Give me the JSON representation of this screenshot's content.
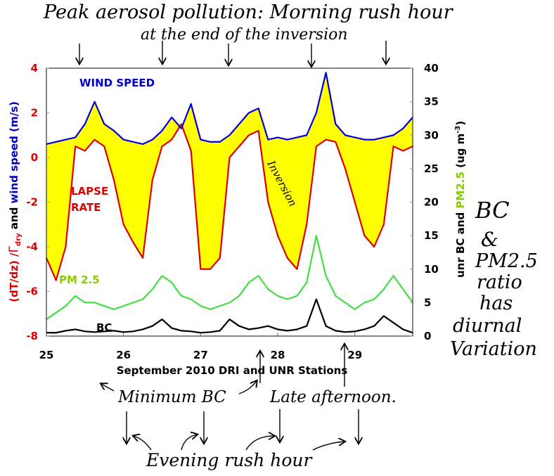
{
  "chart_data": {
    "type": "line",
    "xlabel": "September 2010 DRI and UNR Stations",
    "ylabel_left": {
      "part1": "(dT/dz) /",
      "gamma": "Γ",
      "sub": "dry",
      "part2": " and ",
      "part3": "wind speed (m/s)"
    },
    "ylabel_right": {
      "part1": "unr BC and ",
      "part2": "PM2.5",
      "part3": " (ug m",
      "sup": "-3",
      "part4": ")"
    },
    "xlim": [
      25,
      29.75
    ],
    "ylim_left": [
      -8,
      4
    ],
    "ylim_right": [
      0,
      40
    ],
    "x_ticks": [
      "25",
      "26",
      "27",
      "28",
      "29"
    ],
    "y_ticks_left": [
      "4",
      "2",
      "0",
      "-2",
      "-4",
      "-6",
      "-8"
    ],
    "y_ticks_right": [
      "40",
      "35",
      "30",
      "25",
      "20",
      "15",
      "10",
      "5",
      "0"
    ],
    "x_start": 25,
    "x_step": 0.125,
    "series": [
      {
        "name": "WIND SPEED",
        "axis": "left",
        "color": "#0000dd",
        "values": [
          0.6,
          0.7,
          0.8,
          0.9,
          1.5,
          2.5,
          1.5,
          1.2,
          0.8,
          0.7,
          0.6,
          0.8,
          1.2,
          1.8,
          1.3,
          2.4,
          0.8,
          0.7,
          0.7,
          1.0,
          1.5,
          2.0,
          2.2,
          0.8,
          0.9,
          0.8,
          0.9,
          1.0,
          2.0,
          3.8,
          1.5,
          1.0,
          0.9,
          0.8,
          0.8,
          0.9,
          1.0,
          1.3,
          1.8
        ]
      },
      {
        "name": "LAPSE RATE",
        "name_line1": "LAPSE",
        "name_line2": "RATE",
        "axis": "left",
        "color": "#dd0000",
        "values": [
          -4.5,
          -5.5,
          -4,
          0.5,
          0.3,
          0.8,
          0.5,
          -1,
          -3,
          -3.8,
          -4.5,
          -1,
          0.5,
          0.8,
          1.5,
          0.3,
          -5,
          -5,
          -4.5,
          0,
          0.5,
          1,
          1.2,
          -2,
          -3.5,
          -4.5,
          -5,
          -3,
          0.5,
          0.8,
          0.7,
          -0.5,
          -2,
          -3.5,
          -4,
          -3,
          0.5,
          0.3,
          0.5
        ]
      },
      {
        "name": "PM 2.5",
        "axis": "right",
        "color": "#44dd44",
        "label_color": "#88cc00",
        "values": [
          2.5,
          3.5,
          4.5,
          6,
          5,
          5,
          4.5,
          4,
          4.5,
          5,
          5.5,
          7,
          9,
          8,
          6,
          5.5,
          4.5,
          4,
          4.5,
          5,
          6,
          8,
          9,
          7,
          6,
          5.5,
          6,
          8,
          15,
          9,
          6,
          5,
          4,
          5,
          5.5,
          7,
          9,
          7,
          5
        ]
      },
      {
        "name": "BC",
        "axis": "right",
        "color": "#000000",
        "values": [
          0.5,
          0.5,
          0.8,
          1,
          0.7,
          0.6,
          0.7,
          0.8,
          0.6,
          0.7,
          1,
          1.5,
          2.5,
          1.2,
          0.8,
          0.7,
          0.5,
          0.6,
          0.8,
          2.5,
          1.5,
          1,
          1.2,
          1.5,
          1,
          0.8,
          1,
          1.5,
          5.5,
          1.5,
          0.8,
          0.6,
          0.7,
          1,
          1.5,
          3,
          2,
          1,
          0.5
        ]
      }
    ],
    "fill": {
      "between": [
        "LAPSE RATE",
        "WIND SPEED"
      ],
      "color": "#ffff00"
    },
    "annotations": {
      "title_line1": "Peak aerosol pollution: Morning rush hour",
      "title_line2": "at the end of the inversion",
      "inversion": "Inversion",
      "minimum_bc": "Minimum BC",
      "late_afternoon": "Late afternoon.",
      "evening_rush": "Evening rush hour",
      "side_note": [
        "BC",
        "&",
        "PM2.5",
        "ratio",
        "has",
        "diurnal",
        "Variation"
      ]
    }
  }
}
